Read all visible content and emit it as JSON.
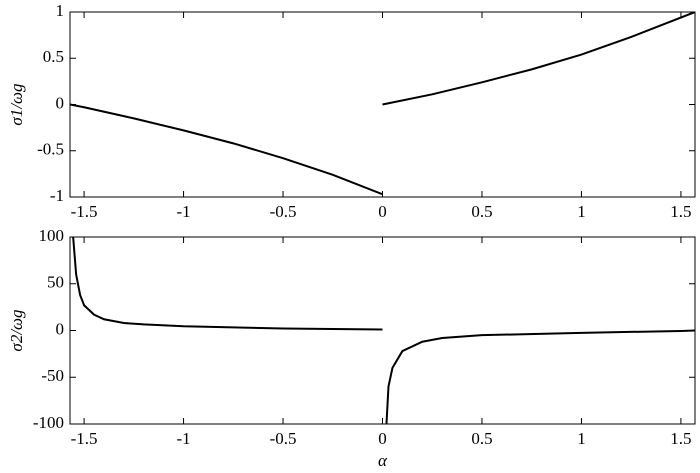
{
  "chart_data": [
    {
      "type": "line",
      "ylabel": "σ1/ωg",
      "xlim": [
        -1.5708,
        1.5708
      ],
      "xticks": [
        -1.5,
        -1,
        -0.5,
        0,
        0.5,
        1,
        1.5
      ],
      "ylim": [
        -1,
        1
      ],
      "yticks": [
        -1,
        -0.5,
        0,
        0.5,
        1
      ],
      "series": [
        {
          "color": "#000000",
          "x": [
            -1.5708,
            -1.5,
            -1.25,
            -1,
            -0.75,
            -0.5,
            -0.25,
            0
          ],
          "values": [
            0,
            -0.03,
            -0.15,
            -0.28,
            -0.42,
            -0.58,
            -0.76,
            -0.97
          ]
        },
        {
          "color": "#000000",
          "x": [
            0,
            0.25,
            0.5,
            0.75,
            1,
            1.25,
            1.5708
          ],
          "values": [
            0,
            0.11,
            0.24,
            0.38,
            0.54,
            0.73,
            1
          ]
        }
      ]
    },
    {
      "type": "line",
      "ylabel": "σ2/ωg",
      "xlabel": "α",
      "xlim": [
        -1.5708,
        1.5708
      ],
      "xticks": [
        -1.5,
        -1,
        -0.5,
        0,
        0.5,
        1,
        1.5
      ],
      "ylim": [
        -100,
        100
      ],
      "yticks": [
        -100,
        -50,
        0,
        50,
        100
      ],
      "series": [
        {
          "color": "#000000",
          "x": [
            -1.555,
            -1.54,
            -1.52,
            -1.5,
            -1.45,
            -1.4,
            -1.3,
            -1.2,
            -1,
            -0.5,
            0
          ],
          "values": [
            100,
            60,
            38,
            27,
            17,
            12,
            8,
            6.5,
            4.5,
            2.2,
            1
          ]
        },
        {
          "color": "#000000",
          "x": [
            0.02,
            0.03,
            0.05,
            0.1,
            0.2,
            0.3,
            0.5,
            1,
            1.5,
            1.5708
          ],
          "values": [
            -100,
            -60,
            -40,
            -22,
            -12,
            -8,
            -5,
            -2.5,
            -0.5,
            0
          ]
        }
      ]
    }
  ]
}
